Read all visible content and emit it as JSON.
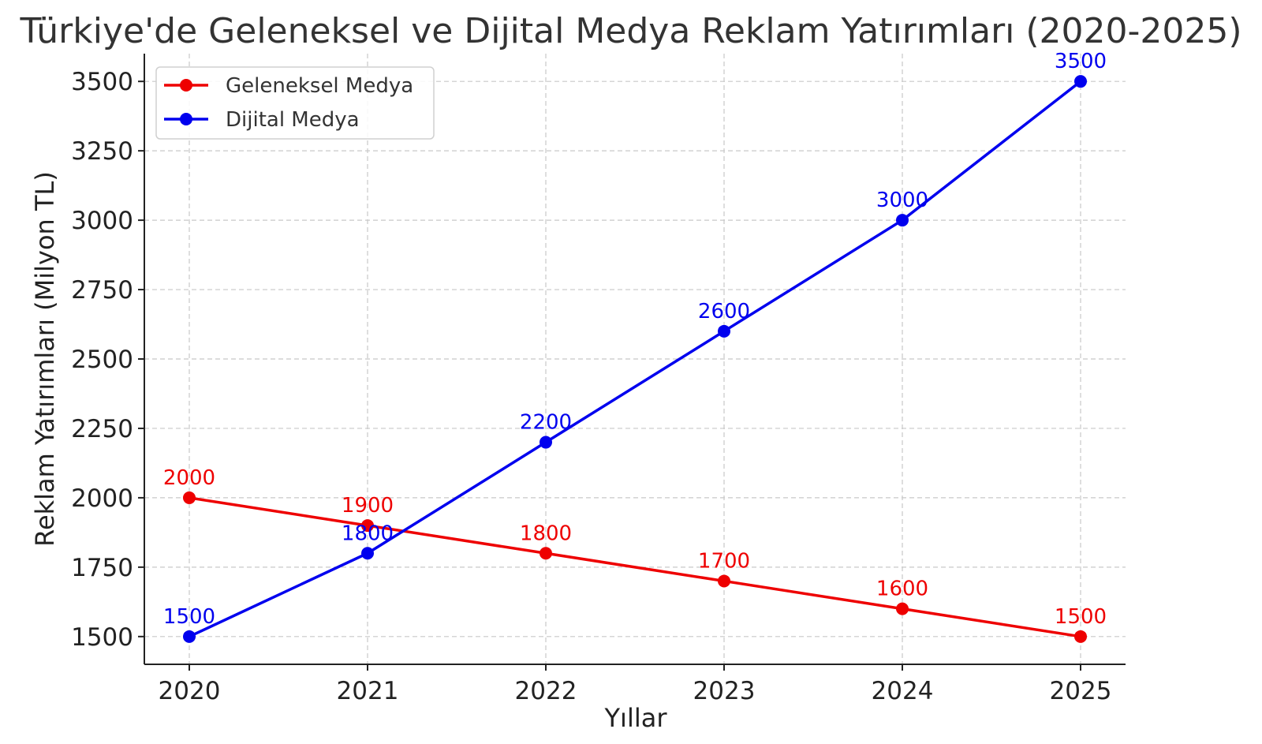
{
  "chart_data": {
    "type": "line",
    "title": "Türkiye'de Geleneksel ve Dijital Medya Reklam Yatırımları (2020-2025)",
    "xlabel": "Yıllar",
    "ylabel": "Reklam Yatırımları (Milyon TL)",
    "categories": [
      "2020",
      "2021",
      "2022",
      "2023",
      "2024",
      "2025"
    ],
    "yticks": [
      1500,
      1750,
      2000,
      2250,
      2500,
      2750,
      3000,
      3250,
      3500
    ],
    "ytick_labels": [
      "1500",
      "1750",
      "2000",
      "2250",
      "2500",
      "2750",
      "3000",
      "3250",
      "3500"
    ],
    "ylim": [
      1400,
      3600
    ],
    "grid": true,
    "legend_position": "top-left",
    "series": [
      {
        "name": "Geleneksel Medya",
        "color": "#ee0000",
        "values": [
          2000,
          1900,
          1800,
          1700,
          1600,
          1500
        ],
        "labels": [
          "2000",
          "1900",
          "1800",
          "1700",
          "1600",
          "1500"
        ]
      },
      {
        "name": "Dijital Medya",
        "color": "#0000ee",
        "values": [
          1500,
          1800,
          2200,
          2600,
          3000,
          3500
        ],
        "labels": [
          "1500",
          "1800",
          "2200",
          "2600",
          "3000",
          "3500"
        ]
      }
    ]
  }
}
